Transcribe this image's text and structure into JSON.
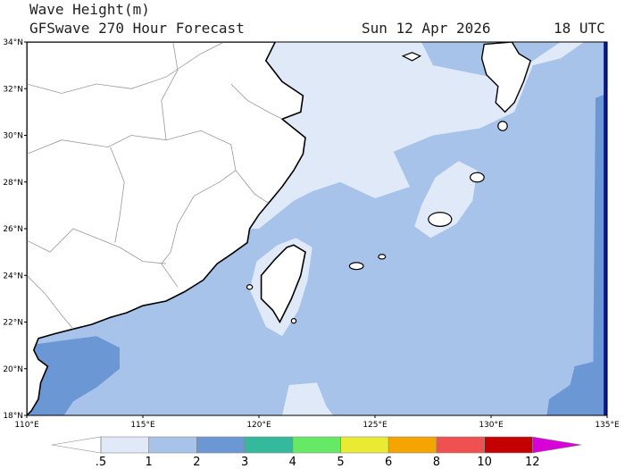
{
  "header": {
    "title": "Wave Height(m)",
    "model": "GFSwave 270 Hour Forecast",
    "date": "Sun 12 Apr 2026",
    "time": "18 UTC"
  },
  "map": {
    "lat_ticks": [
      {
        "value": 34,
        "label": "34°N"
      },
      {
        "value": 32,
        "label": "32°N"
      },
      {
        "value": 30,
        "label": "30°N"
      },
      {
        "value": 28,
        "label": "28°N"
      },
      {
        "value": 26,
        "label": "26°N"
      },
      {
        "value": 24,
        "label": "24°N"
      },
      {
        "value": 22,
        "label": "22°N"
      },
      {
        "value": 20,
        "label": "20°N"
      },
      {
        "value": 18,
        "label": "18°N"
      }
    ],
    "lon_ticks": [
      {
        "value": 110,
        "label": "110°E"
      },
      {
        "value": 115,
        "label": "115°E"
      },
      {
        "value": 120,
        "label": "120°E"
      },
      {
        "value": 125,
        "label": "125°E"
      },
      {
        "value": 130,
        "label": "130°E"
      },
      {
        "value": 135,
        "label": "135°E"
      }
    ]
  },
  "colorbar": {
    "ticks": [
      {
        "value": 0.5,
        "label": ".5"
      },
      1,
      2,
      3,
      4,
      5,
      6,
      8,
      10,
      12
    ],
    "colors": [
      "#ffffff",
      "#dfe9f7",
      "#a7c3ea",
      "#6b97d5",
      "#35b99c",
      "#66ea66",
      "#eaea33",
      "#f5a400",
      "#ef5050",
      "#c40000",
      "#d800d8"
    ]
  }
}
